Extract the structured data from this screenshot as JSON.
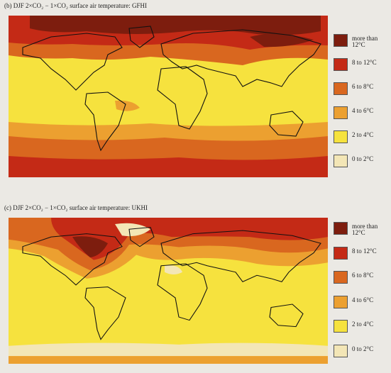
{
  "panels": [
    {
      "title": "(b) DJF 2×CO₂ − 1×CO₂ surface air temperature: GFHI",
      "legend": [
        {
          "label": "more than 12°C",
          "color": "#7d1d0e"
        },
        {
          "label": "8 to 12°C",
          "color": "#c42a16"
        },
        {
          "label": "6 to 8°C",
          "color": "#d9671f"
        },
        {
          "label": "4 to 6°C",
          "color": "#eca030"
        },
        {
          "label": "2 to 4°C",
          "color": "#f6e23e"
        },
        {
          "label": "0 to 2°C",
          "color": "#f3e6b6"
        }
      ]
    },
    {
      "title": "(c) DJF 2×CO₂ − 1×CO₂ surface air temperature: UKHI",
      "legend": [
        {
          "label": "more than 12°C",
          "color": "#7d1d0e"
        },
        {
          "label": "8 to 12°C",
          "color": "#c42a16"
        },
        {
          "label": "6 to 8°C",
          "color": "#d9671f"
        },
        {
          "label": "4 to 6°C",
          "color": "#eca030"
        },
        {
          "label": "2 to 4°C",
          "color": "#f6e23e"
        },
        {
          "label": "0 to 2°C",
          "color": "#f3e6b6"
        }
      ]
    }
  ]
}
